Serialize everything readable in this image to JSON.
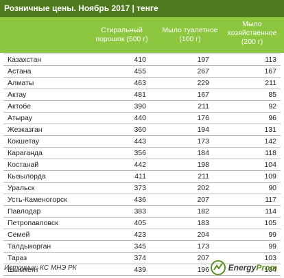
{
  "title": "Розничные цены. Ноябрь 2017 | тенге",
  "columns": {
    "c1": [
      "Стиральный",
      "порошок (500 г)"
    ],
    "c2": [
      "Мыло туалетное",
      "(100 г)"
    ],
    "c3": [
      "Мыло",
      "хозяйственное",
      "(200 г)"
    ]
  },
  "colors": {
    "title_bg": "#4f7a1d",
    "header_bg": "#8dc63f",
    "brand": "#5a8f1f"
  },
  "chart_data": {
    "type": "table",
    "title": "Розничные цены. Ноябрь 2017 | тенге",
    "columns": [
      "Стиральный порошок (500 г)",
      "Мыло туалетное (100 г)",
      "Мыло хозяйственное (200 г)"
    ],
    "rows": [
      {
        "name": "Казахстан",
        "values": [
          410,
          197,
          113
        ]
      },
      {
        "name": "Астана",
        "values": [
          455,
          267,
          167
        ]
      },
      {
        "name": "Алматы",
        "values": [
          463,
          229,
          211
        ]
      },
      {
        "name": "Актау",
        "values": [
          481,
          167,
          85
        ]
      },
      {
        "name": "Актобе",
        "values": [
          390,
          211,
          92
        ]
      },
      {
        "name": "Атырау",
        "values": [
          440,
          176,
          96
        ]
      },
      {
        "name": "Жезказган",
        "values": [
          360,
          194,
          131
        ]
      },
      {
        "name": "Кокшетау",
        "values": [
          443,
          173,
          142
        ]
      },
      {
        "name": "Караганда",
        "values": [
          356,
          184,
          118
        ]
      },
      {
        "name": "Костанай",
        "values": [
          442,
          198,
          104
        ]
      },
      {
        "name": "Кызылорда",
        "values": [
          411,
          211,
          109
        ]
      },
      {
        "name": "Уральск",
        "values": [
          373,
          202,
          90
        ]
      },
      {
        "name": "Усть-Каменогорск",
        "values": [
          436,
          207,
          117
        ]
      },
      {
        "name": "Павлодар",
        "values": [
          383,
          182,
          114
        ]
      },
      {
        "name": "Петропавловск",
        "values": [
          405,
          183,
          105
        ]
      },
      {
        "name": "Семей",
        "values": [
          423,
          204,
          99
        ]
      },
      {
        "name": "Талдыкорган",
        "values": [
          345,
          173,
          99
        ]
      },
      {
        "name": "Тараз",
        "values": [
          374,
          207,
          103
        ]
      },
      {
        "name": "Шымкент",
        "values": [
          439,
          196,
          104
        ]
      }
    ]
  },
  "footer": {
    "source": "Источник: КС МНЭ РК",
    "logo_a": "Energy",
    "logo_b": "Prom"
  }
}
